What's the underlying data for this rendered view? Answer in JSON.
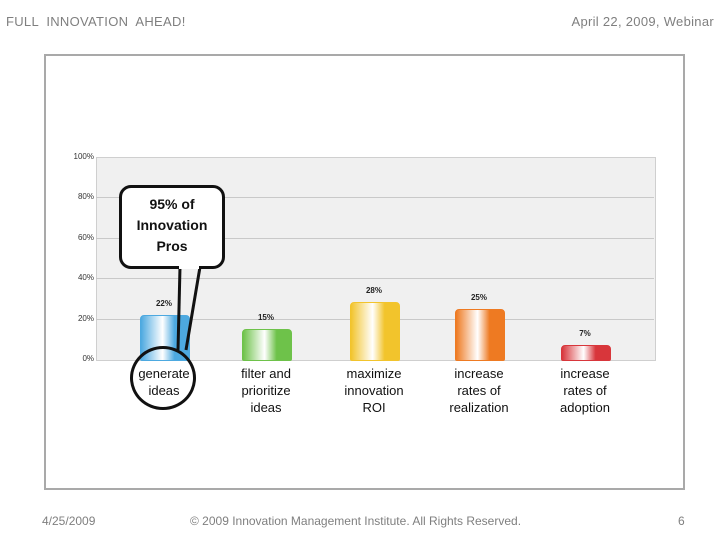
{
  "header": {
    "title": "FULL  INNOVATION  AHEAD!",
    "date": "April 22, 2009, Webinar"
  },
  "callout": {
    "lines": [
      "95% of",
      "Innovation",
      "Pros"
    ]
  },
  "chart_data": {
    "type": "bar",
    "categories": [
      [
        "generate",
        "ideas"
      ],
      [
        "filter and",
        "prioritize",
        "ideas"
      ],
      [
        "maximize",
        "innovation",
        "ROI"
      ],
      [
        "increase",
        "rates of",
        "realization"
      ],
      [
        "increase",
        "rates of",
        "adoption"
      ]
    ],
    "values": [
      22,
      15,
      28,
      25,
      7
    ],
    "value_labels": [
      "22%",
      "15%",
      "28%",
      "25%",
      "7%"
    ],
    "colors": [
      "#4da9e0",
      "#6ec24a",
      "#f2c42c",
      "#ee7a22",
      "#d8363b"
    ],
    "ylim": [
      0,
      100
    ],
    "yticks": [
      "0%",
      "20%",
      "40%",
      "60%",
      "80%",
      "100%"
    ],
    "grid": true
  },
  "footer": {
    "date": "4/25/2009",
    "copyright": "© 2009 Innovation Management Institute. All Rights Reserved.",
    "page": "6"
  }
}
